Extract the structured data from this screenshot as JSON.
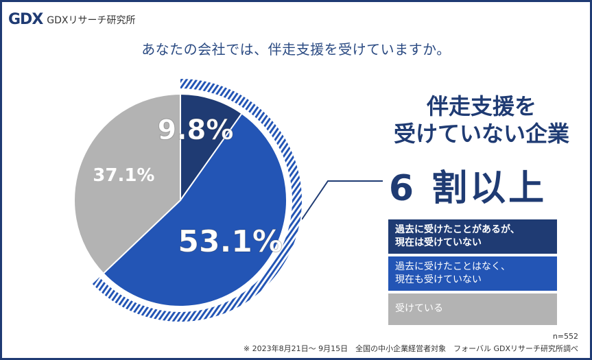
{
  "brand": {
    "mark": "GDX",
    "name": "GDXリサーチ研究所"
  },
  "question": "あなたの会社では、伴走支援を受けていますか。",
  "headline": {
    "line1": "伴走支援を",
    "line2": "受けていない企業",
    "big": "6 割以上"
  },
  "legend": {
    "item1_line1": "過去に受けたことがあるが、",
    "item1_line2": "現在は受けていない",
    "item2_line1": "過去に受けたことはなく、",
    "item2_line2": "現在も受けていない",
    "item3": "受けている"
  },
  "sample_size": "n=552",
  "footnote": "※ 2023年8月21日～ 9月15日　全国の中小企業経営者対象　フォーバル GDXリサーチ研究所調べ",
  "colors": {
    "navy": "#1f3b73",
    "blue": "#2355b5",
    "gray": "#b3b3b3"
  },
  "chart_data": {
    "type": "pie",
    "title": "あなたの会社では、伴走支援を受けていますか。",
    "slices": [
      {
        "name": "過去に受けたことがあるが、現在は受けていない",
        "value": 9.8,
        "label": "9.8%",
        "color": "#1f3b73"
      },
      {
        "name": "過去に受けたことはなく、現在も受けていない",
        "value": 53.1,
        "label": "53.1%",
        "color": "#2355b5"
      },
      {
        "name": "受けている",
        "value": 37.1,
        "label": "37.1%",
        "color": "#b3b3b3"
      }
    ],
    "highlight": {
      "slices": [
        0,
        1
      ],
      "text": "6 割以上"
    },
    "legend_position": "right"
  }
}
